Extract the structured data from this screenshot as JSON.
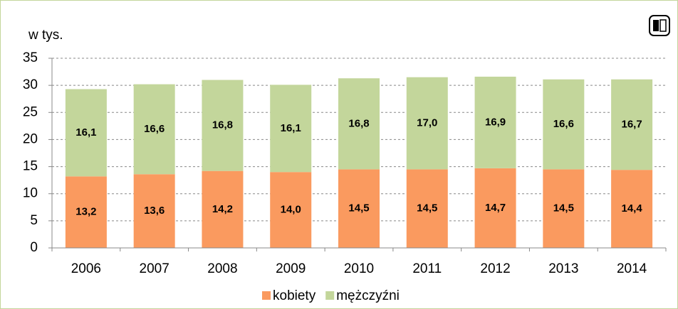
{
  "chart_data": {
    "type": "stacked_bar",
    "axis_label": "w tys.",
    "categories": [
      "2006",
      "2007",
      "2008",
      "2009",
      "2010",
      "2011",
      "2012",
      "2013",
      "2014"
    ],
    "series": [
      {
        "name": "kobiety",
        "color": "#fa9a5f",
        "values": [
          13.2,
          13.6,
          14.2,
          14.0,
          14.5,
          14.5,
          14.7,
          14.5,
          14.4
        ],
        "value_labels": [
          "13,2",
          "13,6",
          "14,2",
          "14,0",
          "14,5",
          "14,5",
          "14,7",
          "14,5",
          "14,4"
        ]
      },
      {
        "name": "mężczyźni",
        "color": "#c3d69b",
        "values": [
          16.1,
          16.6,
          16.8,
          16.1,
          16.8,
          17.0,
          16.9,
          16.6,
          16.7
        ],
        "value_labels": [
          "16,1",
          "16,6",
          "16,8",
          "16,1",
          "16,8",
          "17,0",
          "16,9",
          "16,6",
          "16,7"
        ]
      }
    ],
    "ylim": [
      0,
      35
    ],
    "yticks": [
      0,
      5,
      10,
      15,
      20,
      25,
      30,
      35
    ],
    "grid": true,
    "legend": "bottom"
  }
}
